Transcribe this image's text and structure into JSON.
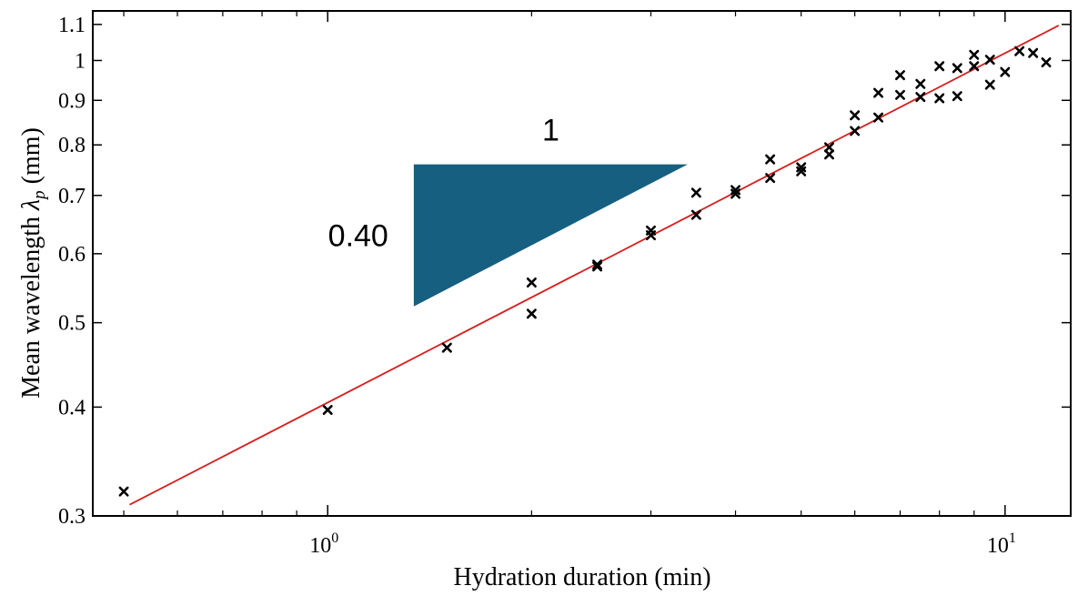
{
  "chart_data": {
    "type": "scatter",
    "title": "",
    "xlabel": "Hydration duration (min)",
    "ylabel": "Mean wavelength ",
    "ylabel_symbol": "λ",
    "ylabel_sub": "p",
    "ylabel_unit": " (mm)",
    "x_scale": "log",
    "y_scale": "log",
    "xlim": [
      0.45,
      12.5
    ],
    "ylim": [
      0.3,
      1.14
    ],
    "x_ticks": [
      {
        "value": 1,
        "base": "10",
        "exp": "0"
      },
      {
        "value": 10,
        "base": "10",
        "exp": "1"
      }
    ],
    "x_minor_ticks": [
      0.5,
      0.6,
      0.7,
      0.8,
      0.9,
      2,
      3,
      4,
      5,
      6,
      7,
      8,
      9
    ],
    "y_ticks": [
      {
        "value": 0.3,
        "label": "0.3"
      },
      {
        "value": 0.4,
        "label": "0.4"
      },
      {
        "value": 0.5,
        "label": "0.5"
      },
      {
        "value": 0.6,
        "label": "0.6"
      },
      {
        "value": 0.7,
        "label": "0.7"
      },
      {
        "value": 0.8,
        "label": "0.8"
      },
      {
        "value": 0.9,
        "label": "0.9"
      },
      {
        "value": 1.0,
        "label": "1"
      },
      {
        "value": 1.1,
        "label": "1.1"
      }
    ],
    "grid": false,
    "legend": "none",
    "marker_color": "#000000",
    "fit_color": "#d62020",
    "triangle_color": "#165f80",
    "points": [
      [
        0.5,
        0.32
      ],
      [
        1.0,
        0.397
      ],
      [
        1.5,
        0.468
      ],
      [
        2.0,
        0.512
      ],
      [
        2.0,
        0.556
      ],
      [
        2.5,
        0.583
      ],
      [
        2.5,
        0.58
      ],
      [
        3.0,
        0.63
      ],
      [
        3.0,
        0.638
      ],
      [
        3.5,
        0.665
      ],
      [
        3.5,
        0.705
      ],
      [
        4.0,
        0.71
      ],
      [
        4.0,
        0.703
      ],
      [
        4.5,
        0.733
      ],
      [
        4.5,
        0.77
      ],
      [
        5.0,
        0.746
      ],
      [
        5.0,
        0.754
      ],
      [
        5.5,
        0.78
      ],
      [
        5.5,
        0.795
      ],
      [
        6.0,
        0.83
      ],
      [
        6.0,
        0.865
      ],
      [
        6.5,
        0.86
      ],
      [
        6.5,
        0.918
      ],
      [
        7.0,
        0.913
      ],
      [
        7.0,
        0.962
      ],
      [
        7.5,
        0.908
      ],
      [
        7.5,
        0.94
      ],
      [
        8.0,
        0.905
      ],
      [
        8.0,
        0.985
      ],
      [
        8.5,
        0.91
      ],
      [
        8.5,
        0.98
      ],
      [
        9.0,
        0.985
      ],
      [
        9.0,
        1.015
      ],
      [
        9.5,
        0.938
      ],
      [
        9.5,
        1.002
      ],
      [
        10.0,
        0.97
      ],
      [
        10.5,
        1.025
      ],
      [
        11.0,
        1.02
      ],
      [
        11.5,
        0.995
      ]
    ],
    "fit_line": {
      "x": [
        0.51,
        12.0
      ],
      "y": [
        0.309,
        1.097
      ]
    },
    "slope_triangle": {
      "x": [
        1.34,
        3.4
      ],
      "y_top": 0.76,
      "y_bottom": 0.522,
      "horizontal_label": "1",
      "vertical_label": "0.40"
    }
  }
}
